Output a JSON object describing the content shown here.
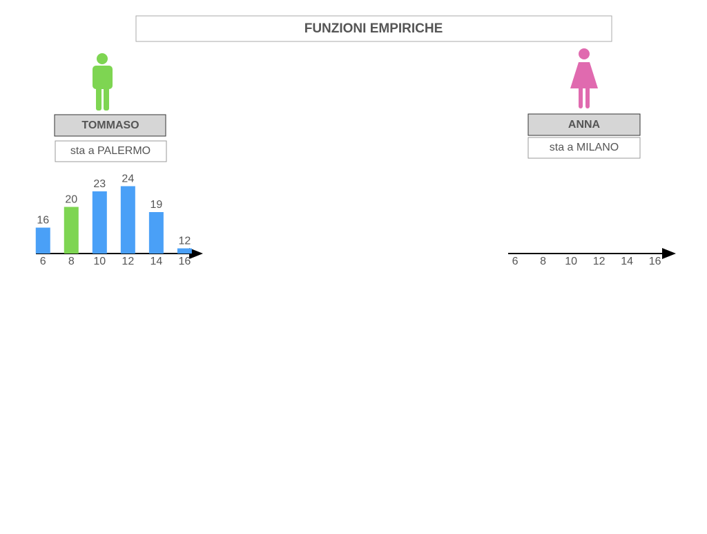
{
  "title": "FUNZIONI EMPIRICHE",
  "chart_data": [
    {
      "type": "bar",
      "name": "TOMMASO",
      "subtitle": "sta a PALERMO",
      "x": [
        6,
        8,
        10,
        12,
        14,
        16
      ],
      "values": [
        16,
        20,
        23,
        24,
        19,
        12
      ],
      "colors": [
        "#4aa0f7",
        "#7ed552",
        "#4aa0f7",
        "#4aa0f7",
        "#4aa0f7",
        "#4aa0f7"
      ],
      "xlim": [
        5.5,
        17.2
      ],
      "xticks": [
        6,
        8,
        10,
        12,
        14,
        16
      ],
      "ylim": [
        11,
        25
      ]
    },
    {
      "type": "axis",
      "name": "ANNA",
      "subtitle": "sta a MILANO",
      "xlim": [
        5.5,
        17.4
      ],
      "xticks": [
        6,
        8,
        10,
        12,
        14,
        16
      ]
    }
  ]
}
